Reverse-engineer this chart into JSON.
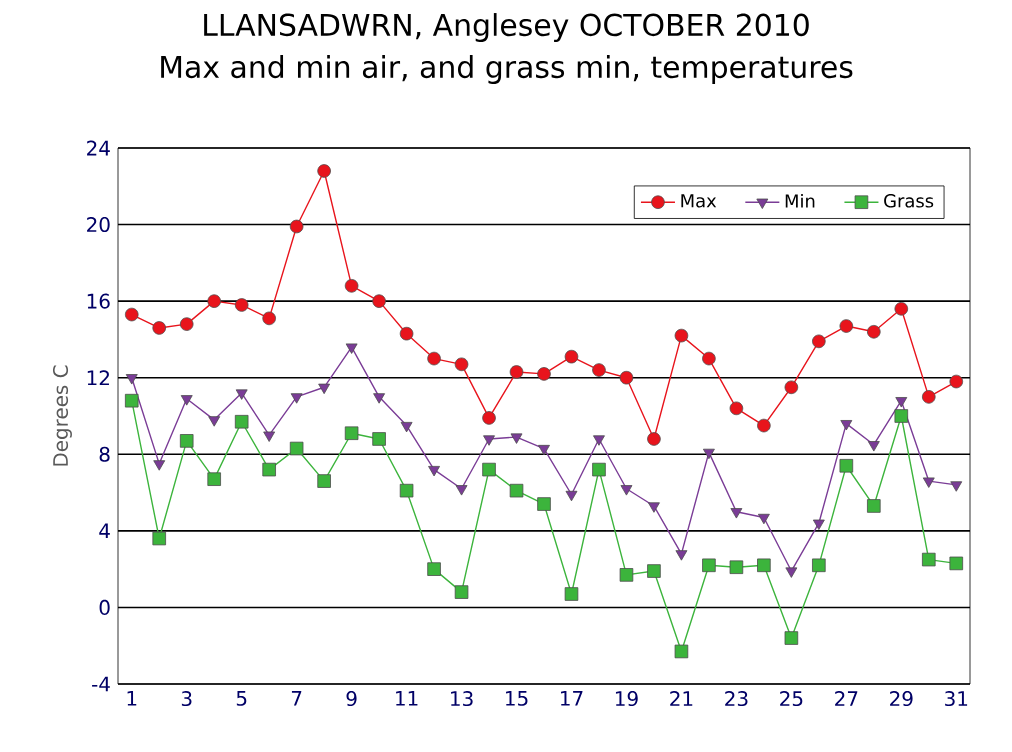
{
  "chart_data": {
    "type": "line",
    "title": "LLANSADWRN, Anglesey OCTOBER 2010",
    "subtitle": "Max and min air, and grass min, temperatures",
    "ylabel": "Degrees C",
    "x": [
      1,
      2,
      3,
      4,
      5,
      6,
      7,
      8,
      9,
      10,
      11,
      12,
      13,
      14,
      15,
      16,
      17,
      18,
      19,
      20,
      21,
      22,
      23,
      24,
      25,
      26,
      27,
      28,
      29,
      30,
      31
    ],
    "xlim": [
      0.5,
      31.5
    ],
    "xticks": [
      1,
      3,
      5,
      7,
      9,
      11,
      13,
      15,
      17,
      19,
      21,
      23,
      25,
      27,
      29,
      31
    ],
    "ylim": [
      -4,
      24
    ],
    "yticks": [
      -4,
      0,
      4,
      8,
      12,
      16,
      20,
      24
    ],
    "grid": "y",
    "legend": "top right",
    "series": [
      {
        "name": "Max",
        "color": "#e8141c",
        "marker": "circle",
        "values": [
          15.3,
          14.6,
          14.8,
          16,
          15.8,
          15.1,
          19.9,
          22.8,
          16.8,
          16,
          14.3,
          13,
          12.7,
          9.9,
          12.3,
          12.2,
          13.1,
          12.4,
          12,
          8.8,
          14.2,
          13,
          10.4,
          9.5,
          11.5,
          13.9,
          14.7,
          14.4,
          15.6,
          11,
          11.8
        ]
      },
      {
        "name": "Min",
        "color": "#7a3c96",
        "marker": "triangle-down",
        "values": [
          12,
          7.5,
          10.9,
          9.8,
          11.2,
          9,
          11,
          11.5,
          13.6,
          11,
          9.5,
          7.2,
          6.2,
          8.8,
          8.9,
          8.3,
          5.9,
          8.8,
          6.2,
          5.3,
          2.8,
          8.1,
          5,
          4.7,
          1.9,
          4.4,
          9.6,
          8.5,
          10.8,
          6.6,
          6.4
        ]
      },
      {
        "name": "Grass",
        "color": "#3cb43c",
        "marker": "square",
        "values": [
          10.8,
          3.6,
          8.7,
          6.7,
          9.7,
          7.2,
          8.3,
          6.6,
          9.1,
          8.8,
          6.1,
          2,
          0.8,
          7.2,
          6.1,
          5.4,
          0.7,
          7.2,
          1.7,
          1.9,
          -2.3,
          2.2,
          2.1,
          2.2,
          -1.6,
          2.2,
          7.4,
          5.3,
          10,
          2.5,
          2.3
        ]
      }
    ]
  }
}
